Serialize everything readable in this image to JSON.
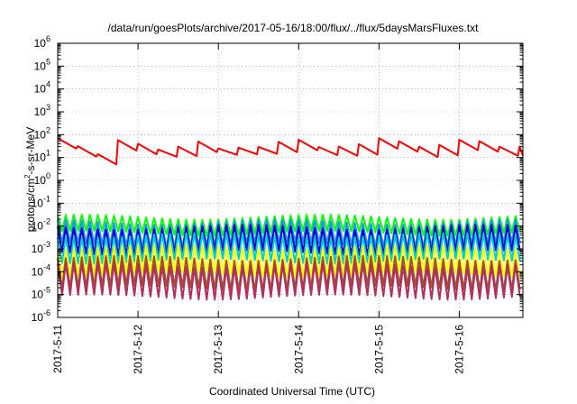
{
  "chart_data": {
    "type": "line",
    "title": "/data/run/goesPlots/archive/2017-05-16/18:00/flux/../flux/5daysMarsFluxes.txt",
    "xlabel": "Coordinated Universal Time (UTC)",
    "ylabel": "protons/cm²-s-sr-MeV",
    "y_scale": "log",
    "ylim_exp": [
      -6,
      6
    ],
    "xlim": [
      "2017-05-11",
      "2017-05-16 19:00"
    ],
    "x_ticks": [
      "2017-5-11",
      "2017-5-12",
      "2017-5-13",
      "2017-5-14",
      "2017-5-15",
      "2017-5-16"
    ],
    "grid": true,
    "series": [
      {
        "color": "#ff0000",
        "width": 2,
        "shape": "slow",
        "period_days": 0.25,
        "peaks": [
          [
            0.0,
            70
          ],
          [
            0.55,
            12
          ],
          [
            0.65,
            30
          ],
          [
            0.72,
            60
          ],
          [
            1.0,
            40
          ],
          [
            1.3,
            20
          ],
          [
            1.8,
            55
          ],
          [
            2.0,
            25
          ],
          [
            2.6,
            30
          ],
          [
            2.9,
            80
          ],
          [
            3.3,
            25
          ],
          [
            3.8,
            40
          ],
          [
            4.05,
            80
          ],
          [
            4.5,
            30
          ],
          [
            4.9,
            40
          ],
          [
            5.1,
            90
          ],
          [
            5.4,
            30
          ],
          [
            5.79,
            30
          ]
        ],
        "troughs": [
          [
            0.55,
            5
          ],
          [
            1.0,
            10
          ],
          [
            1.6,
            12
          ],
          [
            2.6,
            15
          ],
          [
            3.5,
            12
          ],
          [
            4.5,
            10
          ],
          [
            5.5,
            12
          ]
        ]
      },
      {
        "color": "#00ff00",
        "width": 2,
        "shape": "saw",
        "period_days": 0.1,
        "peak": 0.025,
        "trough": 0.005
      },
      {
        "color": "#1e90ff",
        "width": 2,
        "shape": "saw",
        "period_days": 0.1,
        "peak": 0.015,
        "trough": 0.0015
      },
      {
        "color": "#0000cd",
        "width": 2,
        "shape": "saw",
        "period_days": 0.1,
        "peak": 0.009,
        "trough": 0.0007
      },
      {
        "color": "#00ced1",
        "width": 2,
        "shape": "saw",
        "period_days": 0.1,
        "peak": 0.004,
        "trough": 0.0003
      },
      {
        "color": "#ffff00",
        "width": 2,
        "shape": "saw",
        "period_days": 0.1,
        "peak": 0.0012,
        "trough": 8e-05
      },
      {
        "color": "#a0522d",
        "width": 2,
        "shape": "saw",
        "period_days": 0.1,
        "peak": 0.0004,
        "trough": 2e-05
      },
      {
        "color": "#b03060",
        "width": 2,
        "shape": "saw",
        "period_days": 0.1,
        "peak": 0.0002,
        "trough": 8e-06
      }
    ]
  }
}
